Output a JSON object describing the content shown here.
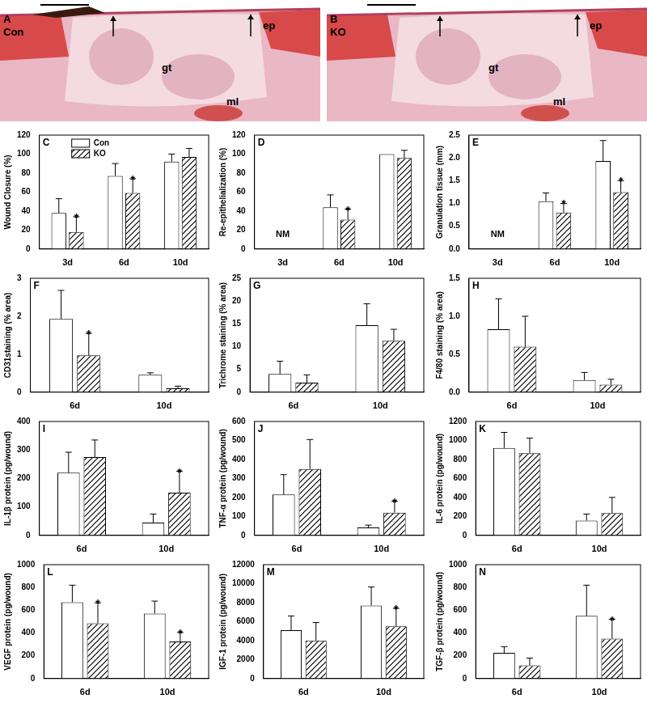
{
  "images": [
    {
      "panel": "A",
      "group": "Con",
      "labels": [
        "ep",
        "gt",
        "ml"
      ]
    },
    {
      "panel": "B",
      "group": "KO",
      "labels": [
        "ep",
        "gt",
        "ml"
      ]
    }
  ],
  "chart_data": [
    {
      "type": "bar",
      "panel": "C",
      "y_label": "Wound Closure (%)",
      "categories": [
        "3d",
        "6d",
        "10d"
      ],
      "series": [
        {
          "name": "Con",
          "color": "#ffffff",
          "values": [
            38,
            77,
            92
          ],
          "errors": [
            15,
            13,
            8
          ]
        },
        {
          "name": "KO",
          "color": "#ffffff",
          "values": [
            18,
            59,
            97
          ],
          "errors": [
            16,
            15,
            9
          ]
        }
      ],
      "ylim": [
        0,
        120
      ],
      "yticks": [
        0,
        20,
        40,
        60,
        80,
        100,
        120
      ],
      "grid": false,
      "legend": "upper left",
      "annotations": [
        {
          "category": "3d",
          "series": "KO",
          "text": "*"
        },
        {
          "category": "6d",
          "series": "KO",
          "text": "*"
        }
      ]
    },
    {
      "type": "bar",
      "panel": "D",
      "y_label": "Re-epithelialization (%)",
      "categories": [
        "3d",
        "6d",
        "10d"
      ],
      "series": [
        {
          "name": "Con",
          "color": "#ffffff",
          "values": [
            null,
            44,
            100
          ],
          "errors": [
            null,
            13,
            0
          ]
        },
        {
          "name": "KO",
          "color": "#ffffff",
          "values": [
            null,
            31,
            96
          ],
          "errors": [
            null,
            11,
            8
          ]
        }
      ],
      "ylim": [
        0,
        120
      ],
      "yticks": [
        0,
        20,
        40,
        60,
        80,
        100,
        120
      ],
      "grid": false,
      "annotations": [
        {
          "category": "3d",
          "text": "NM"
        },
        {
          "category": "6d",
          "series": "KO",
          "text": "*"
        }
      ]
    },
    {
      "type": "bar",
      "panel": "E",
      "y_label": "Granulation tissue (mm)",
      "categories": [
        "3d",
        "6d",
        "10d"
      ],
      "series": [
        {
          "name": "Con",
          "color": "#ffffff",
          "values": [
            null,
            1.05,
            1.93
          ],
          "errors": [
            null,
            0.18,
            0.45
          ]
        },
        {
          "name": "KO",
          "color": "#ffffff",
          "values": [
            null,
            0.8,
            1.25
          ],
          "errors": [
            null,
            0.2,
            0.25
          ]
        }
      ],
      "ylim": [
        0,
        2.5
      ],
      "yticks": [
        {
          "value": 0,
          "label": "0.0"
        },
        {
          "value": 0.5,
          "label": "0.5"
        },
        {
          "value": 1,
          "label": "1.0"
        },
        {
          "value": 1.5,
          "label": "1.5"
        },
        {
          "value": 2,
          "label": "2.0"
        },
        {
          "value": 2.5,
          "label": "2.5"
        }
      ],
      "grid": false,
      "annotations": [
        {
          "category": "3d",
          "text": "NM"
        },
        {
          "category": "6d",
          "series": "KO",
          "text": "*"
        },
        {
          "category": "10d",
          "series": "KO",
          "text": "*"
        }
      ]
    },
    {
      "type": "bar",
      "panel": "F",
      "y_label": "CD31staining (% area)",
      "categories": [
        "6d",
        "10d"
      ],
      "series": [
        {
          "name": "Con",
          "color": "#ffffff",
          "values": [
            1.93,
            0.46
          ],
          "errors": [
            0.75,
            0.05
          ]
        },
        {
          "name": "KO",
          "color": "#ffffff",
          "values": [
            0.97,
            0.1
          ],
          "errors": [
            0.58,
            0.06
          ]
        }
      ],
      "ylim": [
        0,
        3
      ],
      "yticks": [
        0,
        1,
        2,
        3
      ],
      "grid": false,
      "annotations": [
        {
          "category": "6d",
          "series": "KO",
          "text": "*"
        }
      ]
    },
    {
      "type": "bar",
      "panel": "G",
      "y_label": "Trichrome staining (% area)",
      "categories": [
        "6d",
        "10d"
      ],
      "series": [
        {
          "name": "Con",
          "color": "#ffffff",
          "values": [
            4,
            14.7
          ],
          "errors": [
            2.8,
            4.7
          ]
        },
        {
          "name": "KO",
          "color": "#ffffff",
          "values": [
            2.1,
            11.3
          ],
          "errors": [
            1.7,
            2.5
          ]
        }
      ],
      "ylim": [
        0,
        25
      ],
      "yticks": [
        0,
        5,
        10,
        15,
        20,
        25
      ],
      "grid": false,
      "annotations": []
    },
    {
      "type": "bar",
      "panel": "H",
      "y_label": "F4/80 staining (% area)",
      "categories": [
        "6d",
        "10d"
      ],
      "series": [
        {
          "name": "Con",
          "color": "#ffffff",
          "values": [
            0.83,
            0.16
          ],
          "errors": [
            0.4,
            0.1
          ]
        },
        {
          "name": "KO",
          "color": "#ffffff",
          "values": [
            0.6,
            0.1
          ],
          "errors": [
            0.4,
            0.07
          ]
        }
      ],
      "ylim": [
        0,
        1.5
      ],
      "yticks": [
        {
          "value": 0,
          "label": "0.0"
        },
        {
          "value": 0.5,
          "label": "0.5"
        },
        {
          "value": 1,
          "label": "1.0"
        },
        {
          "value": 1.5,
          "label": "1.5"
        }
      ],
      "grid": false,
      "annotations": []
    },
    {
      "type": "bar",
      "panel": "I",
      "y_label": "IL-1β protein (pg/wound)",
      "categories": [
        "6d",
        "10d"
      ],
      "series": [
        {
          "name": "Con",
          "color": "#ffffff",
          "values": [
            220,
            45
          ],
          "errors": [
            72,
            30
          ]
        },
        {
          "name": "KO",
          "color": "#ffffff",
          "values": [
            275,
            150
          ],
          "errors": [
            60,
            75
          ]
        }
      ],
      "ylim": [
        0,
        400
      ],
      "yticks": [
        0,
        100,
        200,
        300,
        400
      ],
      "grid": false,
      "annotations": [
        {
          "category": "10d",
          "series": "KO",
          "text": "*"
        }
      ]
    },
    {
      "type": "bar",
      "panel": "J",
      "y_label": "TNF-α protein (pg/wound)",
      "categories": [
        "6d",
        "10d"
      ],
      "series": [
        {
          "name": "Con",
          "color": "#ffffff",
          "values": [
            215,
            42
          ],
          "errors": [
            105,
            12
          ]
        },
        {
          "name": "KO",
          "color": "#ffffff",
          "values": [
            350,
            120
          ],
          "errors": [
            155,
            60
          ]
        }
      ],
      "ylim": [
        0,
        600
      ],
      "yticks": [
        0,
        100,
        200,
        300,
        400,
        500,
        600
      ],
      "grid": false,
      "annotations": [
        {
          "category": "10d",
          "series": "KO",
          "text": "*"
        }
      ]
    },
    {
      "type": "bar",
      "panel": "K",
      "y_label": "IL-6 protein (pg/wound)",
      "categories": [
        "6d",
        "10d"
      ],
      "series": [
        {
          "name": "Con",
          "color": "#ffffff",
          "values": [
            920,
            155
          ],
          "errors": [
            165,
            70
          ]
        },
        {
          "name": "KO",
          "color": "#ffffff",
          "values": [
            865,
            235
          ],
          "errors": [
            160,
            165
          ]
        }
      ],
      "ylim": [
        0,
        1200
      ],
      "yticks": [
        0,
        200,
        400,
        600,
        800,
        1000,
        1200
      ],
      "grid": false,
      "annotations": []
    },
    {
      "type": "bar",
      "panel": "L",
      "y_label": "VEGF protein (pg/wound)",
      "categories": [
        "6d",
        "10d"
      ],
      "series": [
        {
          "name": "Con",
          "color": "#ffffff",
          "values": [
            670,
            570
          ],
          "errors": [
            150,
            110
          ]
        },
        {
          "name": "KO",
          "color": "#ffffff",
          "values": [
            485,
            325
          ],
          "errors": [
            180,
            80
          ]
        }
      ],
      "ylim": [
        0,
        1000
      ],
      "yticks": [
        0,
        200,
        400,
        600,
        800,
        1000
      ],
      "grid": false,
      "annotations": [
        {
          "category": "6d",
          "series": "KO",
          "text": "*"
        },
        {
          "category": "10d",
          "series": "KO",
          "text": "*"
        }
      ]
    },
    {
      "type": "bar",
      "panel": "M",
      "y_label": "IGF-1 protein (pg/wound)",
      "categories": [
        "6d",
        "10d"
      ],
      "series": [
        {
          "name": "Con",
          "color": "#ffffff",
          "values": [
            5100,
            7700
          ],
          "errors": [
            1500,
            1950
          ]
        },
        {
          "name": "KO",
          "color": "#ffffff",
          "values": [
            4000,
            5500
          ],
          "errors": [
            1900,
            1900
          ]
        }
      ],
      "ylim": [
        0,
        12000
      ],
      "yticks": [
        0,
        2000,
        4000,
        6000,
        8000,
        10000,
        12000
      ],
      "grid": false,
      "annotations": [
        {
          "category": "10d",
          "series": "KO",
          "text": "*"
        }
      ]
    },
    {
      "type": "bar",
      "panel": "N",
      "y_label": "TGF-β protein (pg/wound)",
      "categories": [
        "6d",
        "10d"
      ],
      "series": [
        {
          "name": "Con",
          "color": "#ffffff",
          "values": [
            225,
            550
          ],
          "errors": [
            55,
            270
          ]
        },
        {
          "name": "KO",
          "color": "#ffffff",
          "values": [
            115,
            350
          ],
          "errors": [
            65,
            170
          ]
        }
      ],
      "ylim": [
        0,
        1000
      ],
      "yticks": [
        0,
        200,
        400,
        600,
        800,
        1000
      ],
      "grid": false,
      "annotations": [
        {
          "category": "10d",
          "series": "KO",
          "text": "*"
        }
      ]
    }
  ]
}
